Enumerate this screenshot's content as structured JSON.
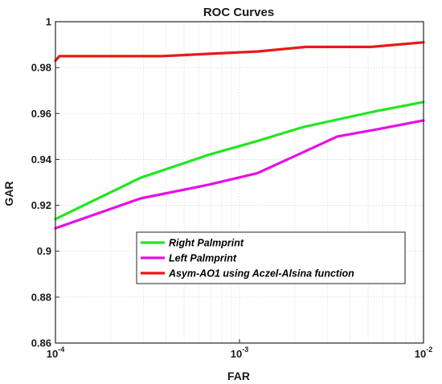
{
  "chart_data": {
    "type": "line",
    "title": "ROC Curves",
    "xlabel": "FAR",
    "ylabel": "GAR",
    "x_scale": "log",
    "xlim": [
      0.0001,
      0.01
    ],
    "ylim": [
      0.86,
      1.0
    ],
    "x_ticks": [
      {
        "value": 0.0001,
        "base": "10",
        "exp": "-4"
      },
      {
        "value": 0.001,
        "base": "10",
        "exp": "-3"
      },
      {
        "value": 0.01,
        "base": "10",
        "exp": "-2"
      }
    ],
    "y_ticks": [
      {
        "value": 0.86,
        "label": "0.86"
      },
      {
        "value": 0.88,
        "label": "0.88"
      },
      {
        "value": 0.9,
        "label": "0.9"
      },
      {
        "value": 0.92,
        "label": "0.92"
      },
      {
        "value": 0.94,
        "label": "0.94"
      },
      {
        "value": 0.96,
        "label": "0.96"
      },
      {
        "value": 0.98,
        "label": "0.98"
      },
      {
        "value": 1.0,
        "label": "1"
      }
    ],
    "grid": true,
    "legend_position": "lower-right",
    "series": [
      {
        "name": "Right Palmprint",
        "color": "#22e622",
        "x": [
          0.0001,
          0.00029,
          0.00068,
          0.00125,
          0.0022,
          0.0037,
          0.0055,
          0.01
        ],
        "y": [
          0.914,
          0.932,
          0.942,
          0.948,
          0.954,
          0.958,
          0.961,
          0.965
        ]
      },
      {
        "name": "Left Palmprint",
        "color": "#e60fe6",
        "x": [
          0.0001,
          0.00029,
          0.00068,
          0.00125,
          0.0022,
          0.0034,
          0.0055,
          0.01
        ],
        "y": [
          0.91,
          0.923,
          0.929,
          0.934,
          0.943,
          0.95,
          0.953,
          0.957
        ]
      },
      {
        "name": "Asym-AO1 using Aczel-Alsina function",
        "color": "#e61a1a",
        "x": [
          0.0001,
          0.000105,
          0.00038,
          0.00068,
          0.00125,
          0.0023,
          0.0052,
          0.01
        ],
        "y": [
          0.983,
          0.985,
          0.985,
          0.986,
          0.987,
          0.989,
          0.989,
          0.991
        ]
      }
    ]
  }
}
